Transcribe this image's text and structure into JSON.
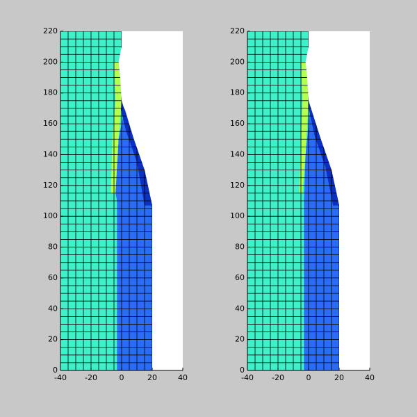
{
  "chart_data": [
    {
      "type": "mesh",
      "xlim": [
        -40,
        40
      ],
      "ylim": [
        0,
        220
      ],
      "xticks": [
        -40,
        -20,
        0,
        20,
        40
      ],
      "yticks": [
        0,
        20,
        40,
        60,
        80,
        100,
        120,
        140,
        160,
        180,
        200,
        220
      ],
      "regions": [
        {
          "color": "#40f0c8",
          "x": [
            -40,
            20,
            20,
            15,
            8,
            0,
            -1,
            -2,
            0,
            0,
            -40
          ],
          "y": [
            0,
            0,
            107,
            130,
            150,
            175,
            190,
            200,
            210,
            220,
            220
          ]
        },
        {
          "color": "#2a6cf5",
          "x": [
            -3,
            20,
            20,
            15,
            8,
            2,
            -2,
            -4,
            -3
          ],
          "y": [
            0,
            0,
            107,
            130,
            150,
            170,
            150,
            115,
            110
          ]
        },
        {
          "color": "#0c30c0",
          "x": [
            20,
            15,
            8,
            0,
            -2,
            3,
            10,
            15
          ],
          "y": [
            107,
            130,
            150,
            175,
            175,
            155,
            135,
            107
          ]
        },
        {
          "color": "#b4ff50",
          "x": [
            -2,
            -1,
            0,
            -2,
            -4,
            -7,
            -6,
            -4,
            -5
          ],
          "y": [
            200,
            190,
            175,
            150,
            115,
            115,
            150,
            175,
            200
          ]
        }
      ]
    },
    {
      "type": "mesh",
      "xlim": [
        -40,
        40
      ],
      "ylim": [
        0,
        220
      ],
      "xticks": [
        -40,
        -20,
        0,
        20,
        40
      ],
      "yticks": [
        0,
        20,
        40,
        60,
        80,
        100,
        120,
        140,
        160,
        180,
        200,
        220
      ],
      "regions": [
        {
          "color": "#40f0c8",
          "x": [
            -40,
            20,
            20,
            15,
            8,
            0,
            -1,
            -2,
            0,
            0,
            -40
          ],
          "y": [
            0,
            0,
            107,
            130,
            150,
            175,
            190,
            200,
            210,
            220,
            220
          ]
        },
        {
          "color": "#2a6cf5",
          "x": [
            -3,
            20,
            20,
            15,
            8,
            1,
            -2,
            -3
          ],
          "y": [
            0,
            0,
            107,
            130,
            150,
            170,
            140,
            110
          ]
        },
        {
          "color": "#0c30c0",
          "x": [
            20,
            15,
            8,
            0,
            -1,
            4,
            11,
            16
          ],
          "y": [
            107,
            130,
            150,
            175,
            175,
            152,
            132,
            107
          ]
        },
        {
          "color": "#b4ff50",
          "x": [
            -2,
            -1,
            0,
            -2,
            -4,
            -6,
            -5,
            -4,
            -5
          ],
          "y": [
            200,
            190,
            175,
            140,
            115,
            115,
            150,
            175,
            200
          ]
        }
      ]
    }
  ]
}
